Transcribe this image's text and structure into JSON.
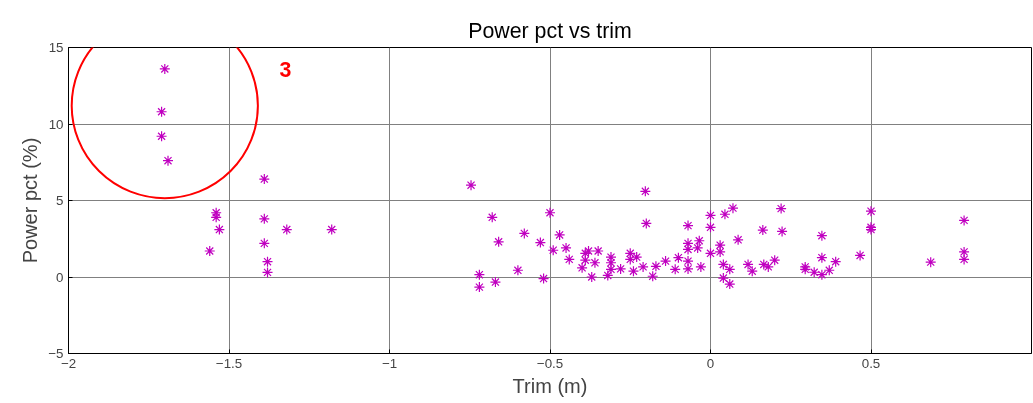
{
  "chart_data": {
    "type": "scatter",
    "title": "Power pct vs trim",
    "xlabel": "Trim (m)",
    "ylabel": "Power pct (%)",
    "xlim": [
      -2,
      1
    ],
    "xticks": [
      -2,
      -1.5,
      -1,
      -0.5,
      0,
      0.5
    ],
    "ylim": [
      -5,
      15
    ],
    "yticks": [
      -5,
      0,
      5,
      10,
      15
    ],
    "grid": true,
    "marker": "cross",
    "annotations": [
      "3"
    ],
    "series": [
      {
        "color": "#c000c0",
        "x": [
          -1.7,
          -1.71,
          -1.71,
          -1.69,
          -1.39,
          -1.54,
          -1.54,
          -1.53,
          -1.56,
          -1.39,
          -1.32,
          -1.18,
          -1.39,
          -1.38,
          -1.38,
          -0.746,
          -0.203,
          -0.68,
          -0.5,
          -0.66,
          -0.58,
          -0.53,
          -0.47,
          -0.49,
          -0.45,
          -0.44,
          -0.72,
          -0.72,
          -0.67,
          -0.6,
          -0.52,
          -0.39,
          -0.38,
          -0.39,
          -0.4,
          -0.35,
          -0.36,
          -0.37,
          -0.31,
          -0.31,
          -0.31,
          -0.32,
          -0.28,
          -0.25,
          -0.25,
          -0.23,
          -0.24,
          -0.21,
          -0.2,
          -0.17,
          -0.18,
          -0.14,
          -0.11,
          -0.1,
          -0.07,
          -0.07,
          -0.07,
          -0.035,
          -0.04,
          -0.07,
          -0.07,
          -0.03,
          0.0,
          0.0,
          0.03,
          0.03,
          0.0,
          0.045,
          0.07,
          0.04,
          0.06,
          0.22,
          0.086,
          0.163,
          0.223,
          0.347,
          0.5,
          0.5,
          0.5,
          0.79,
          0.79,
          0.79,
          0.686,
          0.466,
          0.347,
          0.39,
          0.04,
          0.06,
          0.117,
          0.13,
          0.166,
          0.18,
          0.2,
          0.295,
          0.295,
          0.323,
          0.347,
          0.37
        ],
        "values": [
          13.6,
          10.8,
          9.2,
          7.6,
          6.4,
          4.2,
          3.9,
          3.1,
          1.7,
          3.8,
          3.1,
          3.1,
          2.2,
          1.0,
          0.3,
          6.0,
          5.6,
          3.9,
          4.2,
          2.3,
          2.85,
          2.25,
          2.75,
          1.75,
          1.9,
          1.15,
          0.15,
          -0.66,
          -0.33,
          0.44,
          -0.1,
          1.55,
          1.7,
          1.1,
          0.6,
          1.7,
          0.93,
          0.0,
          1.3,
          0.93,
          0.5,
          0.1,
          0.53,
          1.55,
          1.15,
          1.3,
          0.38,
          0.66,
          3.5,
          0.7,
          0.05,
          1.04,
          0.5,
          1.26,
          3.36,
          2.2,
          1.8,
          2.37,
          1.9,
          1.04,
          0.53,
          0.66,
          4.03,
          3.25,
          2.08,
          1.64,
          1.55,
          4.1,
          4.5,
          -0.07,
          0.5,
          4.47,
          2.43,
          3.07,
          2.98,
          2.7,
          4.3,
          3.25,
          3.1,
          3.7,
          1.64,
          1.15,
          0.97,
          1.41,
          1.26,
          1.0,
          0.82,
          -0.46,
          0.82,
          0.38,
          0.82,
          0.66,
          1.1,
          0.66,
          0.5,
          0.31,
          0.15,
          0.44
        ]
      }
    ]
  }
}
